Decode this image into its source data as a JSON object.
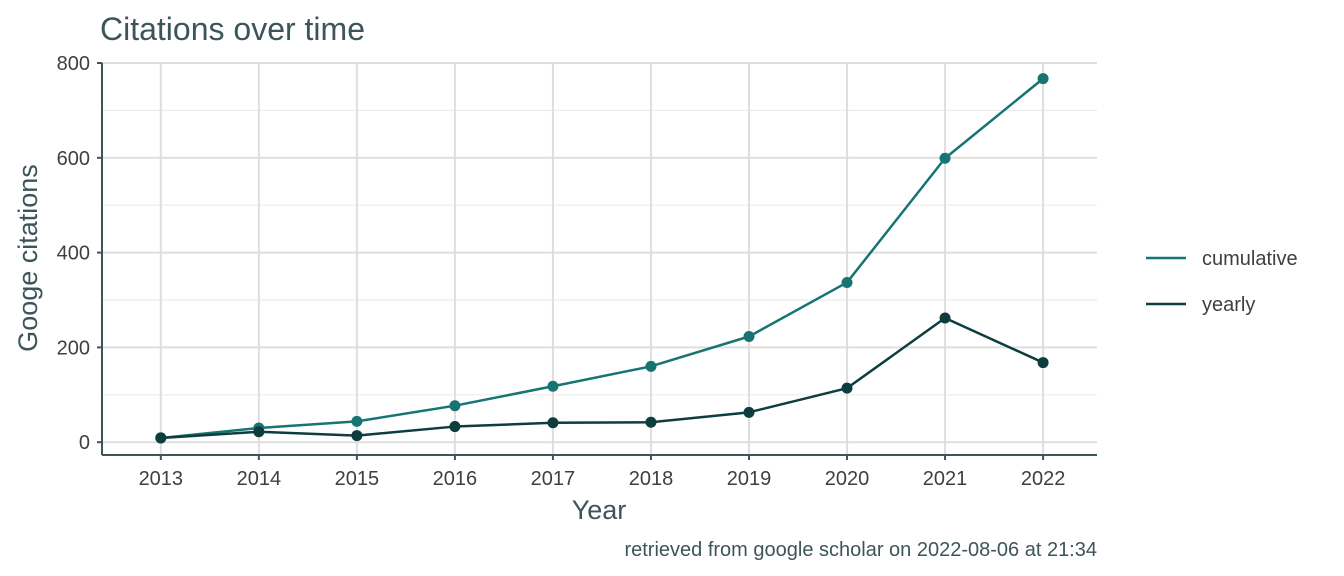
{
  "chart_data": {
    "type": "line",
    "title": "Citations over time",
    "xlabel": "Year",
    "ylabel": "Googe citations",
    "caption": "retrieved from google scholar on 2022-08-06 at 21:34",
    "x": [
      2013,
      2014,
      2015,
      2016,
      2017,
      2018,
      2019,
      2020,
      2021,
      2022
    ],
    "x_tick_labels": [
      "2013",
      "2014",
      "2015",
      "2016",
      "2017",
      "2018",
      "2019",
      "2020",
      "2021",
      "2022"
    ],
    "y_ticks": [
      0,
      200,
      400,
      600,
      800
    ],
    "y_tick_labels": [
      "0",
      "200",
      "400",
      "600",
      "800"
    ],
    "ylim": [
      -27,
      800
    ],
    "xlim": [
      2012.4,
      2022.55
    ],
    "grid": true,
    "legend_position": "right",
    "series": [
      {
        "name": "cumulative",
        "color": "#167473",
        "values": [
          9,
          30,
          44,
          77,
          118,
          160,
          223,
          337,
          599,
          767
        ]
      },
      {
        "name": "yearly",
        "color": "#0e3d3e",
        "values": [
          9,
          22,
          14,
          33,
          41,
          42,
          63,
          114,
          262,
          168
        ]
      }
    ]
  }
}
